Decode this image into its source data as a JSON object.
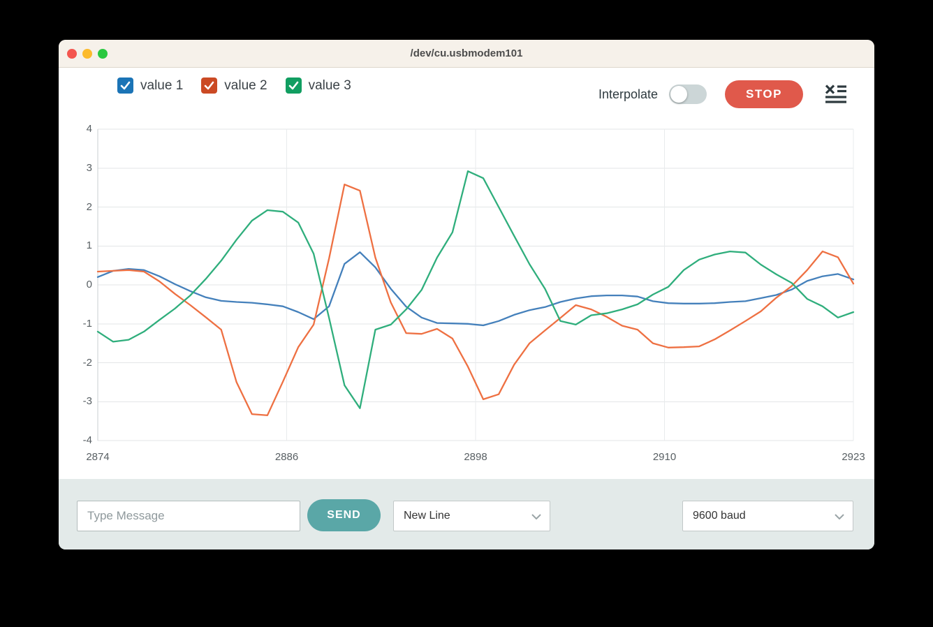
{
  "window": {
    "title": "/dev/cu.usbmodem101",
    "traffic_colors": {
      "close": "#f4564f",
      "minimize": "#fcbb2d",
      "zoom": "#2bc840"
    }
  },
  "header": {
    "legend": [
      {
        "label": "value 1",
        "checkbox_color": "#1b74b6",
        "checked": true
      },
      {
        "label": "value 2",
        "checkbox_color": "#cb4a24",
        "checked": true
      },
      {
        "label": "value 3",
        "checkbox_color": "#119e61",
        "checked": true
      }
    ],
    "interpolate_label": "Interpolate",
    "interpolate_on": false,
    "toggle_color": "#ccd6d7",
    "stop_label": "STOP",
    "stop_color": "#e0594b",
    "clear_icon_color": "#2e3a3f"
  },
  "chart_data": {
    "type": "line",
    "title": "",
    "xlabel": "",
    "ylabel": "",
    "ylim": [
      -4,
      4
    ],
    "grid": true,
    "legend_position": "top-left",
    "y_ticks": [
      4,
      3,
      2,
      1,
      0,
      -1,
      -2,
      -3,
      -4
    ],
    "x_tick_labels": [
      "2874",
      "2886",
      "2898",
      "2910",
      "2923"
    ],
    "x": [
      2874,
      2875,
      2876,
      2877,
      2878,
      2879,
      2880,
      2881,
      2882,
      2883,
      2884,
      2885,
      2886,
      2887,
      2888,
      2889,
      2890,
      2891,
      2892,
      2893,
      2894,
      2895,
      2896,
      2897,
      2898,
      2899,
      2900,
      2901,
      2902,
      2903,
      2904,
      2905,
      2906,
      2907,
      2908,
      2909,
      2910,
      2911,
      2912,
      2913,
      2914,
      2915,
      2916,
      2917,
      2918,
      2919,
      2920,
      2921,
      2922,
      2923
    ],
    "series": [
      {
        "name": "value 1",
        "color": "#4480bb",
        "values": [
          0.2,
          0.36,
          0.41,
          0.38,
          0.22,
          0.02,
          -0.16,
          -0.32,
          -0.41,
          -0.44,
          -0.46,
          -0.5,
          -0.55,
          -0.7,
          -0.88,
          -0.55,
          0.54,
          0.84,
          0.45,
          -0.1,
          -0.56,
          -0.84,
          -0.98,
          -0.99,
          -1.0,
          -1.04,
          -0.93,
          -0.77,
          -0.65,
          -0.57,
          -0.44,
          -0.35,
          -0.29,
          -0.27,
          -0.27,
          -0.3,
          -0.42,
          -0.47,
          -0.48,
          -0.48,
          -0.47,
          -0.44,
          -0.42,
          -0.34,
          -0.26,
          -0.12,
          0.1,
          0.22,
          0.28,
          0.14
        ]
      },
      {
        "name": "value 2",
        "color": "#ee7042",
        "values": [
          0.34,
          0.36,
          0.38,
          0.34,
          0.09,
          -0.23,
          -0.52,
          -0.83,
          -1.15,
          -2.5,
          -3.32,
          -3.35,
          -2.49,
          -1.6,
          -1.02,
          0.68,
          2.58,
          2.42,
          0.7,
          -0.45,
          -1.24,
          -1.26,
          -1.13,
          -1.38,
          -2.1,
          -2.94,
          -2.81,
          -2.05,
          -1.5,
          -1.17,
          -0.85,
          -0.52,
          -0.63,
          -0.82,
          -1.05,
          -1.15,
          -1.5,
          -1.61,
          -1.6,
          -1.58,
          -1.4,
          -1.17,
          -0.93,
          -0.68,
          -0.33,
          -0.03,
          0.38,
          0.86,
          0.71,
          0.03
        ]
      },
      {
        "name": "value 3",
        "color": "#2fae7c",
        "values": [
          -1.2,
          -1.46,
          -1.41,
          -1.2,
          -0.9,
          -0.61,
          -0.27,
          0.15,
          0.62,
          1.16,
          1.65,
          1.92,
          1.88,
          1.6,
          0.8,
          -0.85,
          -2.58,
          -3.17,
          -1.15,
          -1.02,
          -0.63,
          -0.13,
          0.7,
          1.35,
          2.92,
          2.74,
          2.0,
          1.26,
          0.53,
          -0.1,
          -0.93,
          -1.02,
          -0.78,
          -0.73,
          -0.63,
          -0.5,
          -0.25,
          -0.05,
          0.38,
          0.65,
          0.78,
          0.86,
          0.83,
          0.52,
          0.27,
          0.05,
          -0.36,
          -0.55,
          -0.84,
          -0.7
        ]
      }
    ]
  },
  "footer": {
    "bar_color": "#e3eae9",
    "message_placeholder": "Type Message",
    "send_label": "SEND",
    "send_color": "#5aa7a7",
    "line_ending_value": "New Line",
    "baud_value": "9600 baud"
  }
}
